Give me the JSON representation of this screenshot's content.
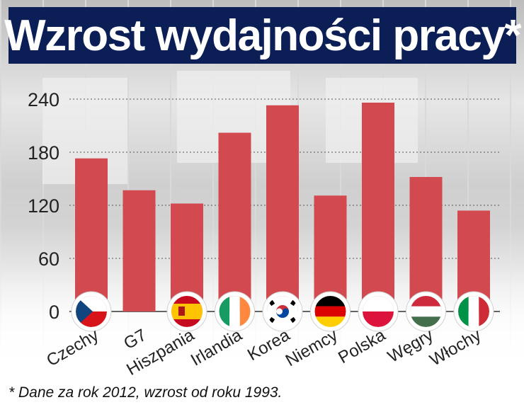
{
  "title": "Wzrost wydajności pracy*",
  "footnote": "* Dane za rok 2012, wzrost od roku 1993.",
  "colors": {
    "bar": "#d24a4f",
    "title_bg": "#0b1f56",
    "text": "#111111"
  },
  "chart_data": {
    "type": "bar",
    "title": "Wzrost wydajności pracy*",
    "xlabel": "",
    "ylabel": "",
    "ylim": [
      0,
      240
    ],
    "yticks": [
      0,
      60,
      120,
      180,
      240
    ],
    "grid": true,
    "categories": [
      "Czechy",
      "G7",
      "Hiszpania",
      "Irlandia",
      "Korea",
      "Niemcy",
      "Polska",
      "Węgry",
      "Włochy"
    ],
    "values": [
      173,
      137,
      122,
      202,
      233,
      131,
      236,
      152,
      114
    ],
    "flags": [
      "cz-flag-icon",
      null,
      "es-flag-icon",
      "ie-flag-icon",
      "kr-flag-icon",
      "de-flag-icon",
      "pl-flag-icon",
      "hu-flag-icon",
      "it-flag-icon"
    ]
  }
}
